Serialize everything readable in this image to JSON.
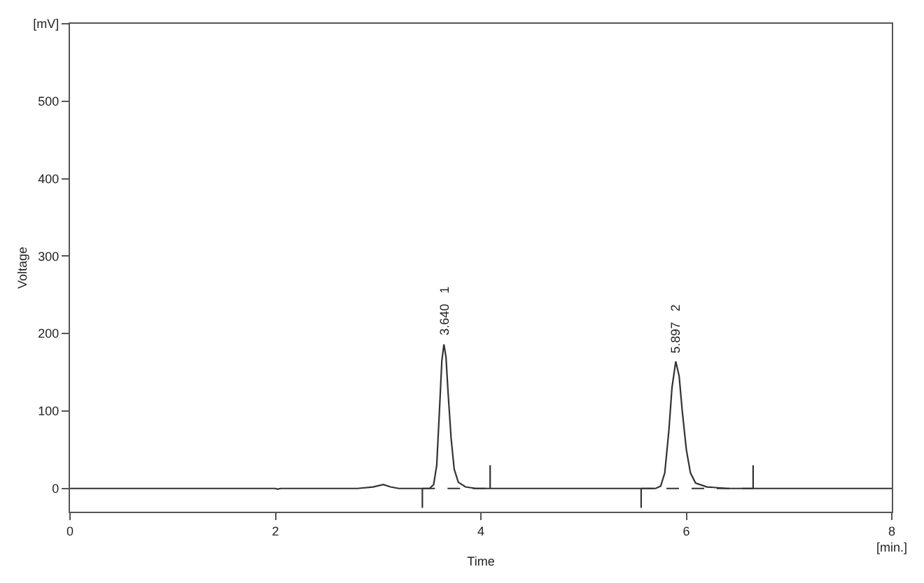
{
  "chart_data": {
    "type": "line",
    "xlabel": "Time",
    "ylabel": "Voltage",
    "xlim": [
      0,
      8
    ],
    "ylim": [
      -30,
      600
    ],
    "xticks": [
      0,
      2,
      4,
      6,
      {
        "value": 8,
        "label": "8\n[min.]"
      }
    ],
    "yticks": [
      0,
      100,
      200,
      300,
      400,
      500,
      {
        "value": 600,
        "label": "[mV]"
      }
    ],
    "marker": "none",
    "series": [
      {
        "color": "#333333",
        "line_style": "solid",
        "x": [
          0,
          2.0,
          2.02,
          2.05,
          2.8,
          2.95,
          3.05,
          3.12,
          3.2,
          3.5,
          3.54,
          3.57,
          3.6,
          3.62,
          3.64,
          3.66,
          3.68,
          3.71,
          3.74,
          3.78,
          3.85,
          3.95,
          5.7,
          5.75,
          5.79,
          5.83,
          5.86,
          5.897,
          5.93,
          5.96,
          6.0,
          6.04,
          6.09,
          6.2,
          6.4,
          8
        ],
        "values": [
          0,
          0,
          -1,
          0,
          0,
          2,
          5,
          2,
          0,
          0,
          5,
          30,
          110,
          165,
          186,
          170,
          125,
          65,
          25,
          8,
          2,
          0,
          0,
          3,
          20,
          75,
          130,
          164,
          145,
          100,
          50,
          20,
          7,
          2,
          0,
          0
        ]
      },
      {
        "color": "#333333",
        "line_style": "dashed",
        "x": [
          3.43,
          4.09
        ],
        "values": [
          0,
          0
        ]
      },
      {
        "color": "#333333",
        "line_style": "dashed",
        "x": [
          5.56,
          6.65
        ],
        "values": [
          0,
          0
        ]
      },
      {
        "color": "#333333",
        "line_style": "solid",
        "x": [
          3.43,
          3.43
        ],
        "values": [
          0,
          -25
        ]
      },
      {
        "color": "#333333",
        "line_style": "solid",
        "x": [
          4.09,
          4.09
        ],
        "values": [
          0,
          30
        ]
      },
      {
        "color": "#333333",
        "line_style": "solid",
        "x": [
          5.56,
          5.56
        ],
        "values": [
          0,
          -25
        ]
      },
      {
        "color": "#333333",
        "line_style": "solid",
        "x": [
          6.65,
          6.65
        ],
        "values": [
          0,
          30
        ]
      }
    ],
    "annotations": [
      {
        "text": "3.640   1",
        "x": 3.64,
        "y": 186
      },
      {
        "text": "5.897   2",
        "x": 5.897,
        "y": 164
      }
    ]
  }
}
